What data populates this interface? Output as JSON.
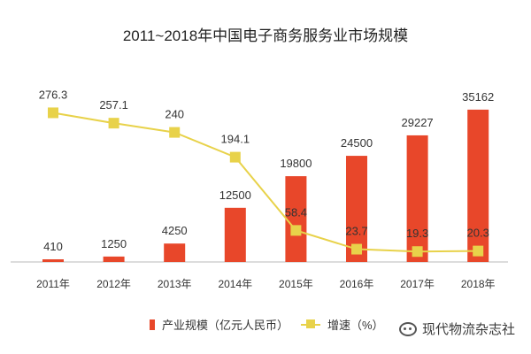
{
  "chart_data": {
    "type": "bar+line",
    "title": "2011~2018年中国电子商务服务业市场规模",
    "categories": [
      "2011年",
      "2012年",
      "2013年",
      "2014年",
      "2015年",
      "2016年",
      "2017年",
      "2018年"
    ],
    "series": [
      {
        "name": "产业规模（亿元人民币）",
        "type": "bar",
        "color": "#e8472a",
        "values": [
          410,
          1250,
          4250,
          12500,
          19800,
          24500,
          29227,
          35162
        ],
        "labels": [
          "410",
          "1250",
          "4250",
          "12500",
          "19800",
          "24500",
          "29227",
          "35162"
        ]
      },
      {
        "name": "增速（%）",
        "type": "line",
        "color": "#e8d24a",
        "values": [
          276.3,
          257.1,
          240,
          194.1,
          58.4,
          23.7,
          19.3,
          20.3
        ],
        "labels": [
          "276.3",
          "257.1",
          "240",
          "194.1",
          "58.4",
          "23.7",
          "19.3",
          "20.3"
        ]
      }
    ],
    "bar_ylim": [
      0,
      38000
    ],
    "line_ylim": [
      0,
      300
    ],
    "grid": false,
    "legend": "bottom"
  },
  "watermark": "现代物流杂志社"
}
